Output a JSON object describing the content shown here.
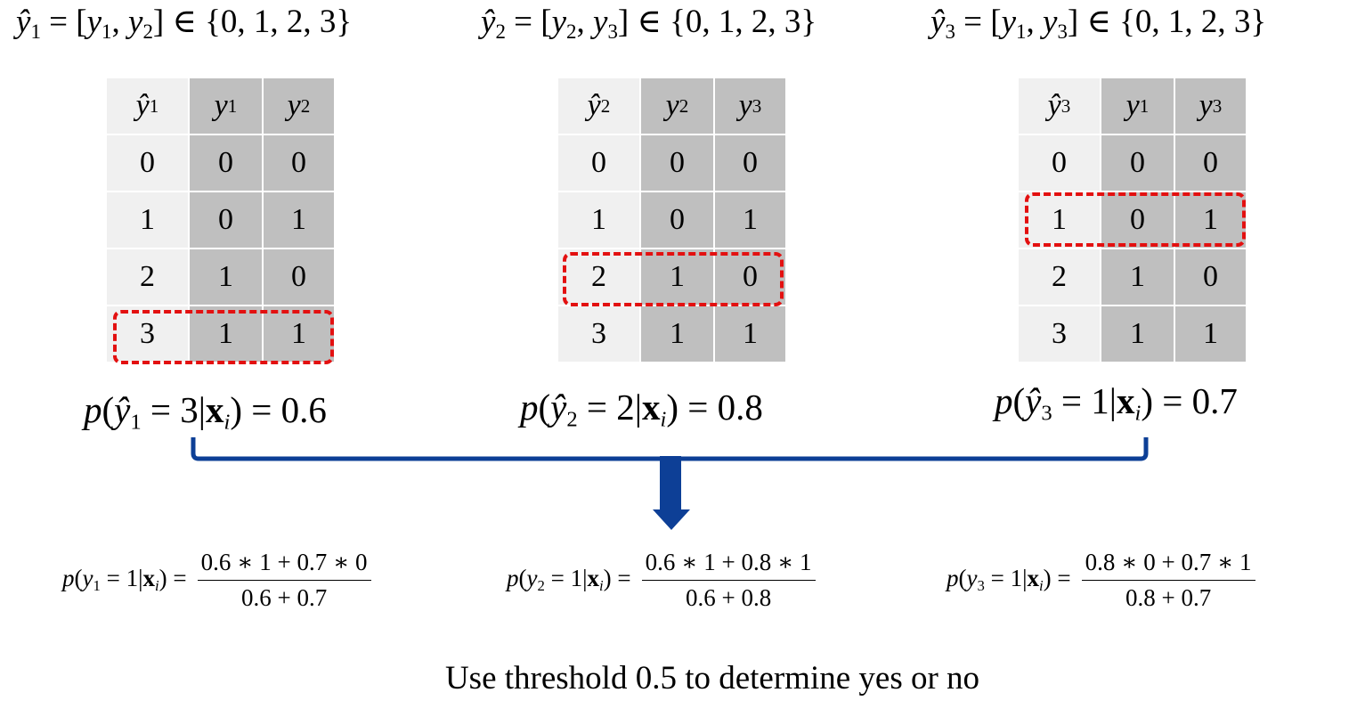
{
  "definitions": [
    {
      "var": "ŷ",
      "idx": "1",
      "pair": [
        "y",
        "1",
        "y",
        "2"
      ],
      "set": "{0, 1, 2, 3}"
    },
    {
      "var": "ŷ",
      "idx": "2",
      "pair": [
        "y",
        "2",
        "y",
        "3"
      ],
      "set": "{0, 1, 2, 3}"
    },
    {
      "var": "ŷ",
      "idx": "3",
      "pair": [
        "y",
        "1",
        "y",
        "3"
      ],
      "set": "{0, 1, 2, 3}"
    }
  ],
  "tables": [
    {
      "headers": [
        {
          "v": "ŷ",
          "s": "1"
        },
        {
          "v": "y",
          "s": "1"
        },
        {
          "v": "y",
          "s": "2"
        }
      ],
      "rows": [
        [
          "0",
          "0",
          "0"
        ],
        [
          "1",
          "0",
          "1"
        ],
        [
          "2",
          "1",
          "0"
        ],
        [
          "3",
          "1",
          "1"
        ]
      ],
      "highlight_row": 3
    },
    {
      "headers": [
        {
          "v": "ŷ",
          "s": "2"
        },
        {
          "v": "y",
          "s": "2"
        },
        {
          "v": "y",
          "s": "3"
        }
      ],
      "rows": [
        [
          "0",
          "0",
          "0"
        ],
        [
          "1",
          "0",
          "1"
        ],
        [
          "2",
          "1",
          "0"
        ],
        [
          "3",
          "1",
          "1"
        ]
      ],
      "highlight_row": 2
    },
    {
      "headers": [
        {
          "v": "ŷ",
          "s": "3"
        },
        {
          "v": "y",
          "s": "1"
        },
        {
          "v": "y",
          "s": "3"
        }
      ],
      "rows": [
        [
          "0",
          "0",
          "0"
        ],
        [
          "1",
          "0",
          "1"
        ],
        [
          "2",
          "1",
          "0"
        ],
        [
          "3",
          "1",
          "1"
        ]
      ],
      "highlight_row": 1
    }
  ],
  "probabilities": [
    {
      "idx": "1",
      "class": "3",
      "value": "0.6"
    },
    {
      "idx": "2",
      "class": "2",
      "value": "0.8"
    },
    {
      "idx": "3",
      "class": "1",
      "value": "0.7"
    }
  ],
  "formulas": [
    {
      "idx": "1",
      "numerator": "0.6 ∗ 1 + 0.7 ∗ 0",
      "denominator": "0.6 + 0.7"
    },
    {
      "idx": "2",
      "numerator": "0.6 ∗ 1 + 0.8 ∗ 1",
      "denominator": "0.6 + 0.8"
    },
    {
      "idx": "3",
      "numerator": "0.8 ∗ 0 + 0.7 ∗ 1",
      "denominator": "0.8 + 0.7"
    }
  ],
  "footer": "Use threshold 0.5 to determine yes or no",
  "colors": {
    "highlight": "#e31010",
    "bracket": "#0d3f96",
    "arrow": "#0d3f96",
    "cell_dark": "#bfbfbf",
    "cell_light": "#f0f0f0"
  }
}
